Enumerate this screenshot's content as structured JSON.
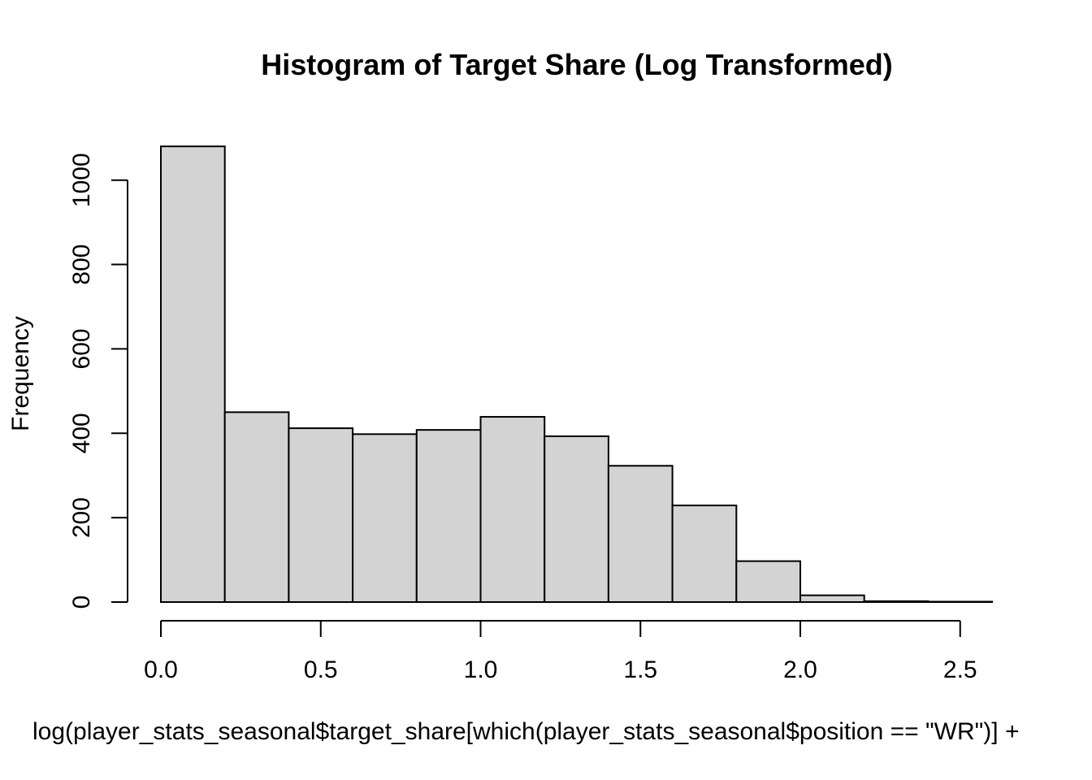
{
  "chart_data": {
    "type": "bar",
    "title": "Histogram of Target Share (Log Transformed)",
    "xlabel": "log(player_stats_seasonal$target_share[which(player_stats_seasonal$position == \"WR\")] +",
    "ylabel": "Frequency",
    "bins": [
      {
        "x0": 0.0,
        "x1": 0.2,
        "count": 1080
      },
      {
        "x0": 0.2,
        "x1": 0.4,
        "count": 450
      },
      {
        "x0": 0.4,
        "x1": 0.6,
        "count": 412
      },
      {
        "x0": 0.6,
        "x1": 0.8,
        "count": 398
      },
      {
        "x0": 0.8,
        "x1": 1.0,
        "count": 408
      },
      {
        "x0": 1.0,
        "x1": 1.2,
        "count": 439
      },
      {
        "x0": 1.2,
        "x1": 1.4,
        "count": 393
      },
      {
        "x0": 1.4,
        "x1": 1.6,
        "count": 323
      },
      {
        "x0": 1.6,
        "x1": 1.8,
        "count": 229
      },
      {
        "x0": 1.8,
        "x1": 2.0,
        "count": 97
      },
      {
        "x0": 2.0,
        "x1": 2.2,
        "count": 16
      },
      {
        "x0": 2.2,
        "x1": 2.4,
        "count": 2
      },
      {
        "x0": 2.4,
        "x1": 2.6,
        "count": 1
      }
    ],
    "xlim": [
      0.0,
      2.5
    ],
    "ylim": [
      0,
      1000
    ],
    "xticks": [
      "0.0",
      "0.5",
      "1.0",
      "1.5",
      "2.0",
      "2.5"
    ],
    "yticks": [
      "0",
      "200",
      "400",
      "600",
      "800",
      "1000"
    ],
    "bar_color": "#d3d3d3",
    "bar_edge_color": "#000000",
    "grid": false
  }
}
